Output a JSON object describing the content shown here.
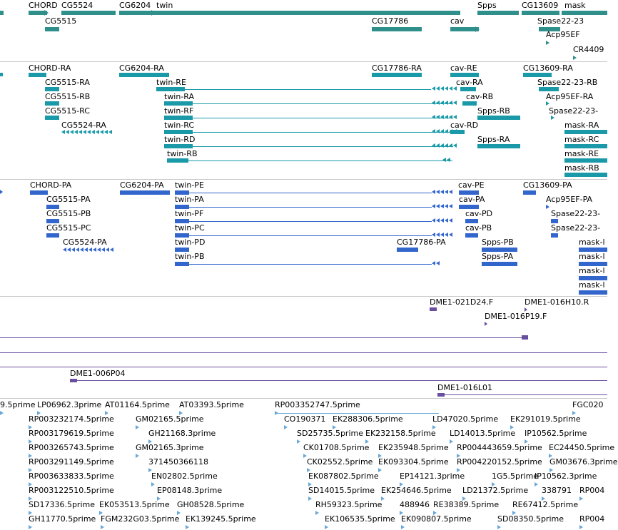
{
  "colors": {
    "gene": "#2f8f8a",
    "transcript": "#1a9aa8",
    "protein": "#3366cc",
    "clone": "#6a4fa0",
    "est": "#6aa8d8",
    "separator": "#c9c9c9"
  },
  "tracks": {
    "genes": {
      "labels": [
        "CHORD",
        "CG5524",
        "CG6204",
        "twin",
        "Spps",
        "CG13609",
        "mask",
        "CG5515",
        "CG17786",
        "cav",
        "Spase22-23",
        "Acp95EF",
        "CR4409"
      ]
    },
    "transcripts": {
      "labels": [
        "CHORD-RA",
        "CG6204-RA",
        "CG17786-RA",
        "cav-RE",
        "CG13609-RA",
        "CG5515-RA",
        "twin-RE",
        "cav-RA",
        "Spase22-23-RB",
        "CG5515-RB",
        "twin-RA",
        "cav-RB",
        "Acp95EF-RA",
        "CG5515-RC",
        "twin-RF",
        "Spps-RB",
        "Spase22-23-",
        "twin-RC",
        "cav-RD",
        "CG5524-RA",
        "mask-RA",
        "twin-RD",
        "Spps-RA",
        "mask-RC",
        "twin-RB",
        "mask-RE",
        "mask-RB"
      ]
    },
    "proteins": {
      "labels": [
        "CHORD-PA",
        "CG6204-PA",
        "twin-PE",
        "cav-PE",
        "CG13609-PA",
        "CG5515-PA",
        "twin-PA",
        "cav-PA",
        "Acp95EF-PA",
        "CG5515-PB",
        "twin-PF",
        "cav-PD",
        "Spase22-23-",
        "CG5515-PC",
        "twin-PC",
        "cav-PB",
        "Spase22-23-",
        "CG5524-PA",
        "twin-PD",
        "CG17786-PA",
        "Spps-PB",
        "mask-l",
        "twin-PB",
        "Spps-PA",
        "mask-l",
        "mask-l",
        "mask-l"
      ]
    },
    "clones": {
      "labels": [
        "DME1-021D24.F",
        "DME1-016H10.R",
        "DME1-016P19.F",
        "DME1-006P04",
        "DME1-016L01"
      ]
    },
    "ests": {
      "labels": [
        "9.5prime",
        "LP06962.3prime",
        "AT01164.5prime",
        "AT03393.5prime",
        "RP003352747.5prime",
        "FGC020",
        "RP003232174.5prime",
        "GM02165.5prime",
        "CO190371",
        "EK288306.5prime",
        "LD47020.5prime",
        "EK291019.5prime",
        "RP003179619.5prime",
        "GH21168.3prime",
        "SD25735.5prime",
        "EK232158.5prime",
        "LD14013.5prime",
        "IP10562.5prime",
        "RP003265743.5prime",
        "GM02165.3prime",
        "CK01708.5prime",
        "EK235948.5prime",
        "RP004443659.5prime",
        "EC24450.5prime",
        "RP003291149.5prime",
        "371450366118",
        "CK02552.5prime",
        "EK093304.5prime",
        "RP004220152.5prime",
        "GM03676.3prime",
        "RP003633833.5prime",
        "EN02802.5prime",
        "EK087802.5prime",
        "EP14121.3prime",
        "1G5.5prime",
        "IP10562.3prime",
        "RP003122510.5prime",
        "EP08148.3prime",
        "SD14015.5prime",
        "EK254646.5prime",
        "LD21372.5prime",
        "338791",
        "RP004",
        "SD17336.5prime",
        "EK053513.5prime",
        "GH08528.5prime",
        "RH59323.5prime",
        "488946",
        "RE38389.5prime",
        "RE67412.5prime",
        "GH11770.5prime",
        "FGM232G03.5prime",
        "EK139245.5prime",
        "EK106535.5prime",
        "EK090807.5prime",
        "SD08350.5prime",
        "RP004"
      ]
    }
  }
}
